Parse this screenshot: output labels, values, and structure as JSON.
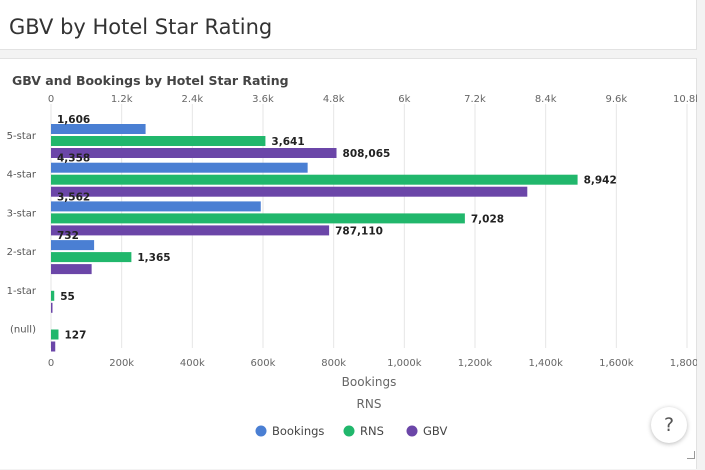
{
  "page": {
    "title": "GBV by Hotel Star Rating"
  },
  "chart_data": {
    "type": "bar",
    "orientation": "horizontal",
    "title": "GBV and Bookings by Hotel Star Rating",
    "categories": [
      "5-star",
      "4-star",
      "3-star",
      "2-star",
      "1-star",
      "(null)"
    ],
    "series": [
      {
        "name": "Bookings",
        "axis": "top",
        "color": "#4a7fd3",
        "values": [
          1606,
          4358,
          3562,
          732,
          null,
          null
        ],
        "labels": [
          "1,606",
          "4,358",
          "3,562",
          "732",
          "",
          ""
        ]
      },
      {
        "name": "RNS",
        "axis": "top",
        "color": "#21b76c",
        "values": [
          3641,
          8942,
          7028,
          1365,
          55,
          127
        ],
        "labels": [
          "3,641",
          "8,942",
          "7,028",
          "1,365",
          "55",
          "127"
        ]
      },
      {
        "name": "GBV",
        "axis": "bottom",
        "color": "#6b46a8",
        "values": [
          808065,
          1348000,
          787110,
          115000,
          0,
          12000
        ],
        "labels": [
          "808,065",
          "",
          "787,110",
          "",
          "",
          ""
        ]
      }
    ],
    "top_axis": {
      "range": [
        0,
        10800
      ],
      "ticks": [
        0,
        1200,
        2400,
        3600,
        4800,
        6000,
        7200,
        8400,
        9600,
        10800
      ],
      "tick_labels": [
        "0",
        "1.2k",
        "2.4k",
        "3.6k",
        "4.8k",
        "6k",
        "7.2k",
        "8.4k",
        "9.6k",
        "10.8k"
      ]
    },
    "bottom_axis": {
      "range": [
        0,
        1800000
      ],
      "ticks": [
        0,
        200000,
        400000,
        600000,
        800000,
        1000000,
        1200000,
        1400000,
        1600000,
        1800000
      ],
      "tick_labels": [
        "0",
        "200k",
        "400k",
        "600k",
        "800k",
        "1,000k",
        "1,200k",
        "1,400k",
        "1,600k",
        "1,800k"
      ]
    },
    "axis_titles": [
      "Bookings",
      "RNS"
    ],
    "legend": [
      "Bookings",
      "RNS",
      "GBV"
    ],
    "legend_position": "bottom",
    "grid": true
  },
  "help": {
    "label": "?"
  }
}
